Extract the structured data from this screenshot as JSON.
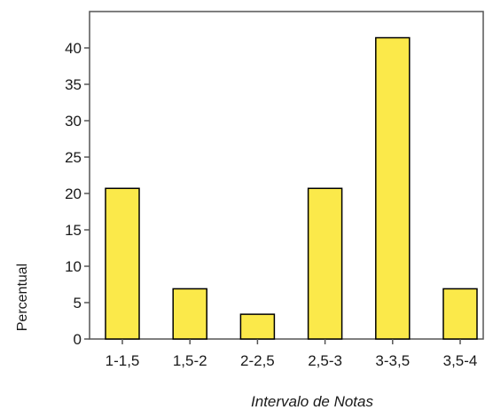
{
  "chart_data": {
    "type": "bar",
    "categories": [
      "1-1,5",
      "1,5-2",
      "2-2,5",
      "2,5-3",
      "3-3,5",
      "3,5-4"
    ],
    "values": [
      20.7,
      6.9,
      3.4,
      20.7,
      41.4,
      6.9
    ],
    "xlabel": "Intervalo de Notas",
    "ylabel": "Percentual",
    "ylim": [
      0,
      45
    ],
    "yticks": [
      0,
      5,
      10,
      15,
      20,
      25,
      30,
      35,
      40
    ],
    "grid": false,
    "bar_color": "#fbe94a",
    "bar_edge_color": "#000000"
  }
}
